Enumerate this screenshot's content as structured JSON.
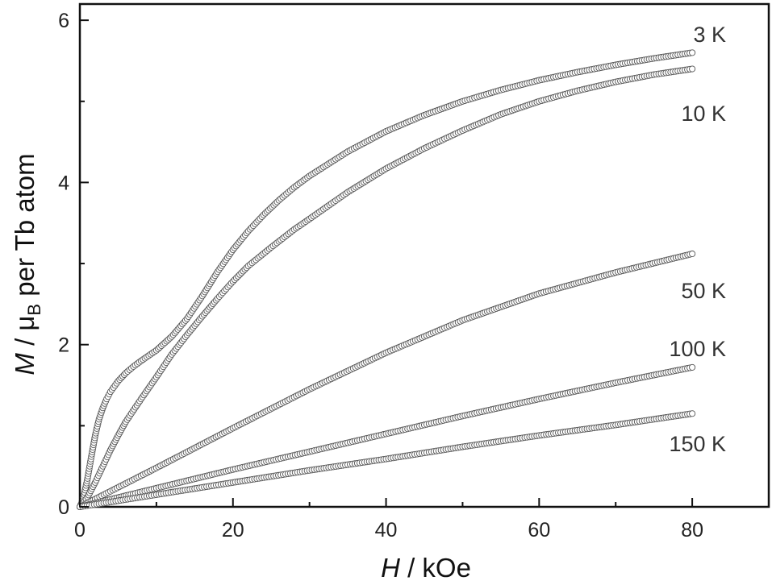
{
  "chart_data": {
    "type": "scatter",
    "xlabel": {
      "var": "H",
      "unit": " / kOe"
    },
    "ylabel": {
      "var": "M",
      "mid": " / μ",
      "sub": "B",
      "unit": " per Tb atom"
    },
    "xlim": [
      0,
      90
    ],
    "ylim": [
      0,
      6.2
    ],
    "x_ticks": [
      0,
      20,
      40,
      60,
      80
    ],
    "x_tick_labels": [
      "0",
      "20",
      "40",
      "60",
      "80"
    ],
    "y_ticks": [
      0,
      2,
      4,
      6
    ],
    "y_tick_labels": [
      "0",
      "2",
      "4",
      "6"
    ],
    "x_minor_step": 10,
    "y_minor_step": 1,
    "grid": false,
    "marker": "open-circle",
    "series": [
      {
        "name": "3 K",
        "points": [
          [
            0,
            0
          ],
          [
            0.5,
            0.12
          ],
          [
            1,
            0.35
          ],
          [
            1.5,
            0.62
          ],
          [
            2,
            0.88
          ],
          [
            2.5,
            1.08
          ],
          [
            3,
            1.22
          ],
          [
            3.5,
            1.33
          ],
          [
            4,
            1.42
          ],
          [
            5,
            1.55
          ],
          [
            6,
            1.65
          ],
          [
            7,
            1.73
          ],
          [
            8,
            1.8
          ],
          [
            10,
            1.93
          ],
          [
            12,
            2.1
          ],
          [
            14,
            2.32
          ],
          [
            16,
            2.6
          ],
          [
            18,
            2.9
          ],
          [
            20,
            3.17
          ],
          [
            22,
            3.4
          ],
          [
            24,
            3.6
          ],
          [
            26,
            3.78
          ],
          [
            28,
            3.94
          ],
          [
            30,
            4.08
          ],
          [
            35,
            4.38
          ],
          [
            40,
            4.63
          ],
          [
            45,
            4.83
          ],
          [
            50,
            5.0
          ],
          [
            55,
            5.14
          ],
          [
            60,
            5.26
          ],
          [
            65,
            5.36
          ],
          [
            70,
            5.45
          ],
          [
            75,
            5.53
          ],
          [
            80,
            5.6
          ]
        ]
      },
      {
        "name": "10 K",
        "points": [
          [
            0,
            0
          ],
          [
            1,
            0.12
          ],
          [
            2,
            0.3
          ],
          [
            3,
            0.5
          ],
          [
            4,
            0.7
          ],
          [
            5,
            0.88
          ],
          [
            6,
            1.05
          ],
          [
            8,
            1.33
          ],
          [
            10,
            1.6
          ],
          [
            12,
            1.88
          ],
          [
            14,
            2.12
          ],
          [
            16,
            2.35
          ],
          [
            18,
            2.57
          ],
          [
            20,
            2.78
          ],
          [
            22,
            2.97
          ],
          [
            25,
            3.2
          ],
          [
            28,
            3.42
          ],
          [
            30,
            3.55
          ],
          [
            35,
            3.88
          ],
          [
            40,
            4.17
          ],
          [
            45,
            4.42
          ],
          [
            50,
            4.64
          ],
          [
            55,
            4.84
          ],
          [
            60,
            5.0
          ],
          [
            65,
            5.13
          ],
          [
            70,
            5.24
          ],
          [
            75,
            5.33
          ],
          [
            80,
            5.4
          ]
        ]
      },
      {
        "name": "50 K",
        "points": [
          [
            0,
            0
          ],
          [
            10,
            0.48
          ],
          [
            20,
            0.97
          ],
          [
            30,
            1.45
          ],
          [
            40,
            1.9
          ],
          [
            50,
            2.3
          ],
          [
            60,
            2.63
          ],
          [
            70,
            2.89
          ],
          [
            80,
            3.12
          ]
        ]
      },
      {
        "name": "100 K",
        "points": [
          [
            0,
            0
          ],
          [
            10,
            0.23
          ],
          [
            20,
            0.46
          ],
          [
            30,
            0.68
          ],
          [
            40,
            0.9
          ],
          [
            50,
            1.12
          ],
          [
            60,
            1.33
          ],
          [
            70,
            1.53
          ],
          [
            80,
            1.72
          ]
        ]
      },
      {
        "name": "150 K",
        "points": [
          [
            0,
            0
          ],
          [
            10,
            0.15
          ],
          [
            20,
            0.3
          ],
          [
            30,
            0.45
          ],
          [
            40,
            0.59
          ],
          [
            50,
            0.74
          ],
          [
            60,
            0.88
          ],
          [
            70,
            1.01
          ],
          [
            80,
            1.15
          ]
        ]
      }
    ]
  }
}
